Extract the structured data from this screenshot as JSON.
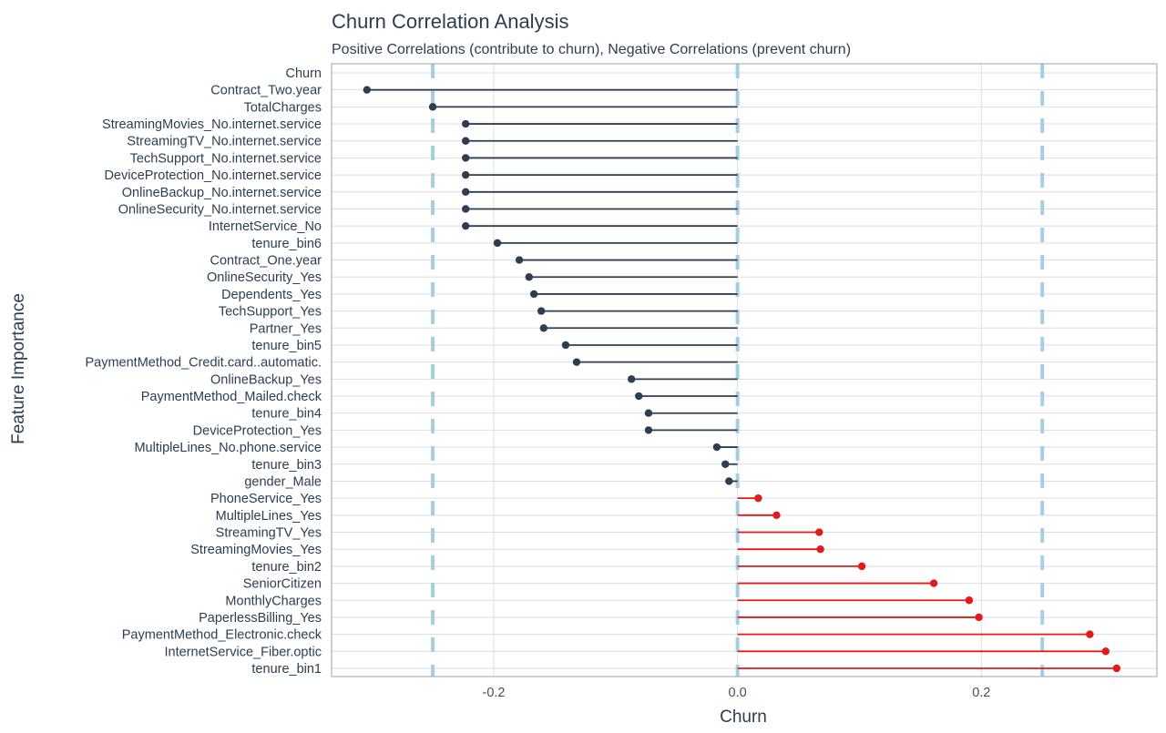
{
  "chart_data": {
    "type": "lollipop",
    "title": "Churn Correlation Analysis",
    "subtitle": "Positive Correlations (contribute to churn), Negative Correlations (prevent churn)",
    "xlabel": "Churn",
    "ylabel": "Feature Importance",
    "xlim": [
      -0.333,
      0.344
    ],
    "x_ticks": [
      {
        "value": -0.2,
        "label": "-0.2"
      },
      {
        "value": 0,
        "label": "0.0"
      },
      {
        "value": 0.2,
        "label": "0.2"
      }
    ],
    "reference_lines": [
      -0.25,
      0,
      0.25
    ],
    "grid": true,
    "colors": {
      "negative": "#2c3e50",
      "positive": "#e31a1c",
      "reference": "#a6cee3"
    },
    "categories": [
      "Churn",
      "Contract_Two.year",
      "TotalCharges",
      "StreamingMovies_No.internet.service",
      "StreamingTV_No.internet.service",
      "TechSupport_No.internet.service",
      "DeviceProtection_No.internet.service",
      "OnlineBackup_No.internet.service",
      "OnlineSecurity_No.internet.service",
      "InternetService_No",
      "tenure_bin6",
      "Contract_One.year",
      "OnlineSecurity_Yes",
      "Dependents_Yes",
      "TechSupport_Yes",
      "Partner_Yes",
      "tenure_bin5",
      "PaymentMethod_Credit.card..automatic.",
      "OnlineBackup_Yes",
      "PaymentMethod_Mailed.check",
      "tenure_bin4",
      "DeviceProtection_Yes",
      "MultipleLines_No.phone.service",
      "tenure_bin3",
      "gender_Male",
      "PhoneService_Yes",
      "MultipleLines_Yes",
      "StreamingTV_Yes",
      "StreamingMovies_Yes",
      "tenure_bin2",
      "SeniorCitizen",
      "MonthlyCharges",
      "PaperlessBilling_Yes",
      "PaymentMethod_Electronic.check",
      "InternetService_Fiber.optic",
      "tenure_bin1"
    ],
    "values": [
      null,
      -0.304,
      -0.25,
      -0.223,
      -0.223,
      -0.223,
      -0.223,
      -0.223,
      -0.223,
      -0.223,
      -0.197,
      -0.179,
      -0.171,
      -0.167,
      -0.161,
      -0.159,
      -0.141,
      -0.132,
      -0.087,
      -0.081,
      -0.073,
      -0.073,
      -0.017,
      -0.01,
      -0.007,
      0.017,
      0.032,
      0.067,
      0.068,
      0.102,
      0.161,
      0.19,
      0.198,
      0.289,
      0.302,
      0.311
    ]
  }
}
